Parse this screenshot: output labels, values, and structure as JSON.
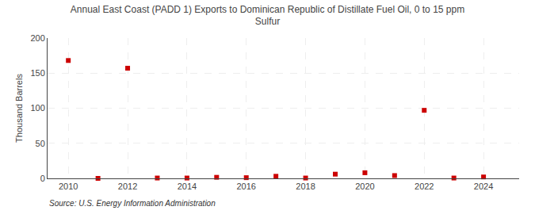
{
  "chart_data": {
    "type": "scatter",
    "title": "Annual East Coast (PADD 1) Exports to Dominican Republic of Distillate Fuel Oil, 0 to 15 ppm\nSulfur",
    "ylabel": "Thousand Barrels",
    "annotations": [
      "Source: U.S. Energy Information Administration"
    ],
    "x": [
      2010,
      2011,
      2012,
      2013,
      2014,
      2015,
      2016,
      2017,
      2018,
      2019,
      2020,
      2021,
      2022,
      2023,
      2024
    ],
    "values": [
      168,
      0,
      157,
      0.5,
      0.5,
      1.5,
      1.0,
      3.0,
      0.5,
      6.0,
      8.0,
      4.0,
      97,
      0.5,
      2.0
    ],
    "color": "#cc0000",
    "marker": "square",
    "grid": true,
    "xlim": [
      2009.3,
      2025.2
    ],
    "xticks": [
      2010,
      2012,
      2014,
      2016,
      2018,
      2020,
      2022,
      2024
    ],
    "ylim": [
      0,
      200
    ],
    "yticks": [
      0,
      50,
      100,
      150,
      200
    ]
  }
}
